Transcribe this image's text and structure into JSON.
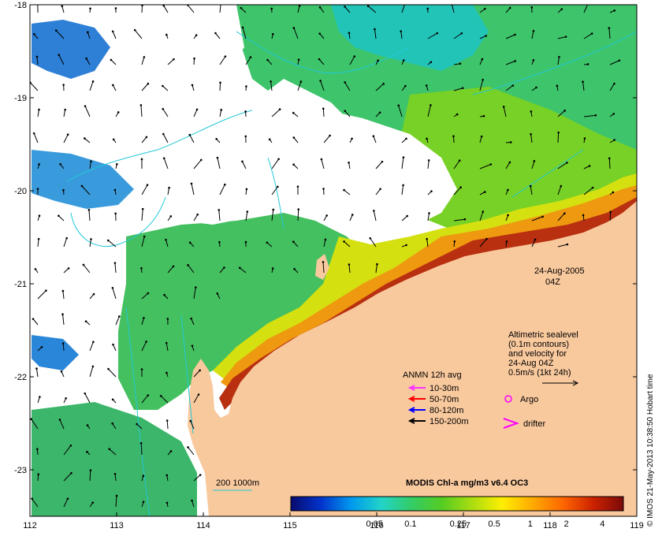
{
  "map": {
    "lon_range": [
      112,
      119
    ],
    "lat_range": [
      -23.5,
      -18
    ],
    "x_ticks": [
      "112",
      "113",
      "114",
      "115",
      "116",
      "117",
      "118",
      "119"
    ],
    "y_ticks": [
      "-18",
      "-19",
      "-20",
      "-21",
      "-22",
      "-23"
    ],
    "colors": {
      "land": "#f9c99e",
      "cloud": "#ffffff",
      "contour": "#22c8d8"
    }
  },
  "annotations": {
    "date": "24-Aug-2005",
    "time": "04Z",
    "altimetry": [
      "Altimetric sealevel",
      "(0.1m contours)",
      "and velocity for",
      "24-Aug 04Z",
      "0.5m/s (1kt 24h)"
    ],
    "bathy_legend": "200  1000m",
    "credit": "© IMOS 21-May-2013 10:38:50 Hobart time"
  },
  "legend": {
    "title": "ANMN 12h avg",
    "moorings": [
      {
        "label": "10-30m",
        "color": "#ff33ff"
      },
      {
        "label": "50-70m",
        "color": "#ff0000"
      },
      {
        "label": "80-120m",
        "color": "#0000ff"
      },
      {
        "label": "150-200m",
        "color": "#000000"
      }
    ],
    "argo": {
      "label": "Argo",
      "color": "#ff00ff"
    },
    "drifter": {
      "label": "drifter",
      "color": "#ff00ff"
    }
  },
  "colorbar": {
    "title": "MODIS Chl-a mg/m3 v6.4 OC3",
    "ticks": [
      "0.05",
      "0.1",
      "0.25",
      "0.5",
      "1",
      "2",
      "4"
    ],
    "tick_values": [
      0.05,
      0.1,
      0.25,
      0.5,
      1,
      2,
      4
    ],
    "range": [
      0.01,
      6.0
    ],
    "stops": [
      "#0a0a6e",
      "#0033cc",
      "#0099ee",
      "#22d4c8",
      "#33cc66",
      "#55cc22",
      "#aadd11",
      "#ffee00",
      "#ffaa00",
      "#ff6600",
      "#cc2200",
      "#7a0a0a"
    ]
  }
}
